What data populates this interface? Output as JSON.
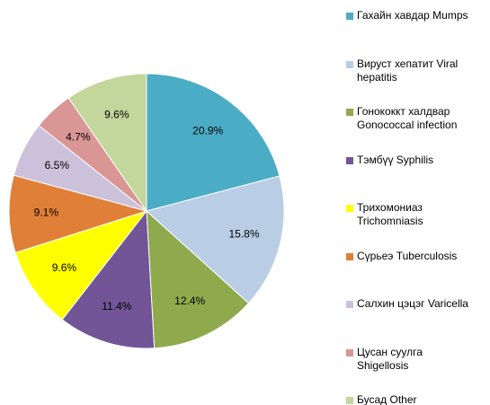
{
  "chart_data": {
    "type": "pie",
    "categories": [
      "Гахайн хавдар Mumps",
      "Вируст хепатит Viral\nhepatitis",
      "Гонококкт халдвар\nGonococcal infection",
      "Тэмбүү Syphilis",
      "Трихомониаз\nTrichomniasis",
      "Сүрьеэ Tuberculosis",
      "Салхин цэцэг Varicella",
      "Цусан суулга\nShigellosis",
      "Бусад Other"
    ],
    "values": [
      20.9,
      15.8,
      12.4,
      11.4,
      9.6,
      9.1,
      6.5,
      4.7,
      9.6
    ],
    "value_labels": [
      "20.9%",
      "15.8%",
      "12.4%",
      "11.4%",
      "9.6%",
      "9.1%",
      "6.5%",
      "4.7%",
      "9.6%"
    ],
    "colors": [
      "#4bacc6",
      "#b9cde5",
      "#8eaa4c",
      "#715596",
      "#ffff00",
      "#e07f38",
      "#ccc1da",
      "#d99694",
      "#c3d69b"
    ],
    "legend": "right"
  }
}
